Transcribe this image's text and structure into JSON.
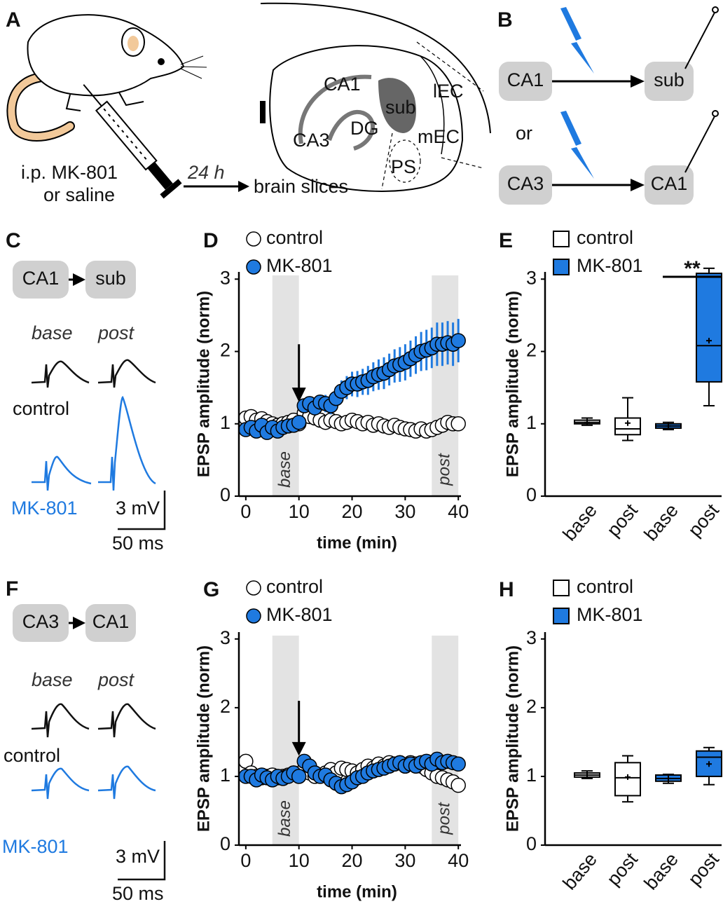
{
  "panel_a": {
    "label": "A",
    "injection": "i.p. MK-801",
    "alternative": "or saline",
    "delay": "24 h",
    "result": "brain slices",
    "regions": [
      "CA1",
      "sub",
      "lEC",
      "CA3",
      "DG",
      "mEC",
      "PS"
    ]
  },
  "panel_b": {
    "label": "B",
    "top": [
      "CA1",
      "sub"
    ],
    "or": "or",
    "bottom": [
      "CA3",
      "CA1"
    ]
  },
  "panel_c": {
    "label": "C",
    "nodes": [
      "CA1",
      "sub"
    ],
    "base": "base",
    "post": "post",
    "control": "control",
    "drug": "MK-801",
    "scale_y": "3 mV",
    "scale_x": "50 ms"
  },
  "panel_f": {
    "label": "F",
    "nodes": [
      "CA3",
      "CA1"
    ],
    "base": "base",
    "post": "post",
    "control": "control",
    "drug": "MK-801",
    "scale_y": "3 mV",
    "scale_x": "50 ms"
  },
  "chart_data": [
    {
      "type": "line",
      "panel": "D",
      "xlabel": "time (min)",
      "ylabel": "EPSP amplitude (norm)",
      "x": [
        0,
        1,
        2,
        3,
        4,
        5,
        6,
        7,
        8,
        9,
        10,
        11,
        12,
        13,
        14,
        15,
        16,
        17,
        18,
        19,
        20,
        21,
        22,
        23,
        24,
        25,
        26,
        27,
        28,
        29,
        30,
        31,
        32,
        33,
        34,
        35,
        36,
        37,
        38,
        39,
        40
      ],
      "xlim": [
        -1.3,
        40.5
      ],
      "xticks": [
        0,
        10,
        20,
        30,
        40
      ],
      "ylim": [
        0,
        3.1
      ],
      "yticks": [
        0,
        1,
        2,
        3
      ],
      "shaded": [
        {
          "range": [
            5,
            10
          ],
          "label": "base"
        },
        {
          "range": [
            35,
            40
          ],
          "label": "post"
        }
      ],
      "arrow_x": 10,
      "series": [
        {
          "name": "control",
          "color": "#ffffff",
          "values": [
            1.08,
            1.1,
            1.05,
            1.07,
            1.03,
            1.0,
            0.98,
            1.0,
            1.02,
            1.05,
            1.0,
            1.15,
            1.1,
            1.08,
            1.05,
            1.02,
            1.05,
            1.03,
            1.0,
            1.02,
            1.05,
            1.03,
            1.0,
            1.02,
            0.98,
            1.0,
            0.97,
            0.95,
            0.98,
            0.95,
            0.93,
            0.92,
            0.9,
            0.93,
            0.9,
            0.92,
            0.95,
            0.98,
            1.02,
            1.0,
            1.0
          ]
        },
        {
          "name": "MK-801",
          "color": "#1f7ae0",
          "values": [
            0.92,
            0.95,
            0.9,
            0.98,
            0.88,
            0.95,
            0.9,
            0.95,
            0.97,
            0.98,
            1.02,
            1.25,
            1.28,
            1.22,
            1.3,
            1.28,
            1.25,
            1.35,
            1.45,
            1.5,
            1.55,
            1.55,
            1.58,
            1.6,
            1.65,
            1.68,
            1.7,
            1.75,
            1.8,
            1.82,
            1.85,
            1.9,
            1.95,
            2.0,
            2.02,
            2.05,
            2.1,
            2.1,
            2.12,
            2.1,
            2.15
          ],
          "errors": [
            0.05,
            0.05,
            0.05,
            0.05,
            0.05,
            0.05,
            0.05,
            0.05,
            0.05,
            0.05,
            0.05,
            0.08,
            0.08,
            0.1,
            0.1,
            0.12,
            0.12,
            0.14,
            0.15,
            0.16,
            0.17,
            0.18,
            0.18,
            0.2,
            0.2,
            0.21,
            0.22,
            0.22,
            0.23,
            0.24,
            0.25,
            0.25,
            0.26,
            0.27,
            0.28,
            0.28,
            0.3,
            0.3,
            0.3,
            0.3,
            0.3
          ]
        }
      ]
    },
    {
      "type": "box",
      "panel": "E",
      "ylabel": "EPSP amplitude (norm)",
      "categories": [
        "base",
        "post",
        "base",
        "post"
      ],
      "ylim": [
        0,
        3.1
      ],
      "yticks": [
        0,
        1,
        2,
        3
      ],
      "annotation": "**",
      "series": [
        {
          "name": "control",
          "color": "#ffffff",
          "min": [
            0.98,
            0.77,
            null,
            null
          ],
          "q1": [
            1.0,
            0.85,
            null,
            null
          ],
          "median": [
            1.02,
            0.93,
            null,
            null
          ],
          "q3": [
            1.05,
            1.08,
            null,
            null
          ],
          "max": [
            1.08,
            1.36,
            null,
            null
          ],
          "mean": [
            1.02,
            1.01,
            null,
            null
          ]
        },
        {
          "name": "MK-801",
          "color": "#1f7ae0",
          "min": [
            null,
            null,
            0.92,
            1.25
          ],
          "q1": [
            null,
            null,
            0.94,
            1.58
          ],
          "median": [
            null,
            null,
            0.97,
            2.08
          ],
          "q3": [
            null,
            null,
            1.0,
            3.08
          ],
          "max": [
            null,
            null,
            1.02,
            3.15
          ],
          "mean": [
            null,
            null,
            0.97,
            2.15
          ]
        }
      ]
    },
    {
      "type": "line",
      "panel": "G",
      "xlabel": "time (min)",
      "ylabel": "EPSP amplitude (norm)",
      "x": [
        0,
        1,
        2,
        3,
        4,
        5,
        6,
        7,
        8,
        9,
        10,
        11,
        12,
        13,
        14,
        15,
        16,
        17,
        18,
        19,
        20,
        21,
        22,
        23,
        24,
        25,
        26,
        27,
        28,
        29,
        30,
        31,
        32,
        33,
        34,
        35,
        36,
        37,
        38,
        39,
        40
      ],
      "xlim": [
        -1.3,
        40.5
      ],
      "xticks": [
        0,
        10,
        20,
        30,
        40
      ],
      "ylim": [
        0,
        3.1
      ],
      "yticks": [
        0,
        1,
        2,
        3
      ],
      "shaded": [
        {
          "range": [
            5,
            10
          ],
          "label": "base"
        },
        {
          "range": [
            35,
            40
          ],
          "label": "post"
        }
      ],
      "arrow_x": 10,
      "series": [
        {
          "name": "control",
          "color": "#ffffff",
          "values": [
            1.22,
            1.05,
            1.0,
            0.98,
            1.0,
            1.02,
            0.98,
            1.0,
            1.02,
            1.05,
            1.0,
            1.1,
            1.05,
            1.0,
            1.02,
            1.05,
            1.1,
            1.05,
            1.12,
            1.1,
            1.08,
            1.05,
            1.1,
            1.15,
            1.12,
            1.18,
            1.15,
            1.2,
            1.18,
            1.2,
            1.15,
            1.2,
            1.18,
            1.15,
            1.1,
            1.05,
            1.0,
            0.98,
            0.95,
            0.92,
            0.87
          ]
        },
        {
          "name": "MK-801",
          "color": "#1f7ae0",
          "values": [
            1.0,
            1.0,
            0.95,
            1.02,
            0.98,
            0.95,
            1.0,
            0.97,
            1.0,
            1.05,
            1.0,
            1.22,
            1.15,
            1.05,
            1.0,
            1.02,
            0.95,
            0.9,
            0.85,
            0.88,
            0.92,
            0.98,
            1.0,
            1.05,
            1.08,
            1.1,
            1.12,
            1.15,
            1.18,
            1.2,
            1.15,
            1.18,
            1.15,
            1.2,
            1.22,
            1.18,
            1.25,
            1.2,
            1.22,
            1.2,
            1.18
          ]
        }
      ]
    },
    {
      "type": "box",
      "panel": "H",
      "ylabel": "EPSP amplitude (norm)",
      "categories": [
        "base",
        "post",
        "base",
        "post"
      ],
      "ylim": [
        0,
        3.1
      ],
      "yticks": [
        0,
        1,
        2,
        3
      ],
      "series": [
        {
          "name": "control",
          "color": "#ffffff",
          "min": [
            0.97,
            0.63,
            null,
            null
          ],
          "q1": [
            0.99,
            0.72,
            null,
            null
          ],
          "median": [
            1.02,
            0.98,
            null,
            null
          ],
          "q3": [
            1.05,
            1.2,
            null,
            null
          ],
          "max": [
            1.08,
            1.3,
            null,
            null
          ],
          "mean": [
            1.02,
            0.99,
            null,
            null
          ]
        },
        {
          "name": "MK-801",
          "color": "#1f7ae0",
          "min": [
            null,
            null,
            0.9,
            0.88
          ],
          "q1": [
            null,
            null,
            0.93,
            1.0
          ],
          "median": [
            null,
            null,
            0.97,
            1.28
          ],
          "q3": [
            null,
            null,
            1.02,
            1.37
          ],
          "max": [
            null,
            null,
            1.03,
            1.42
          ],
          "mean": [
            null,
            null,
            0.97,
            1.18
          ]
        }
      ]
    }
  ]
}
